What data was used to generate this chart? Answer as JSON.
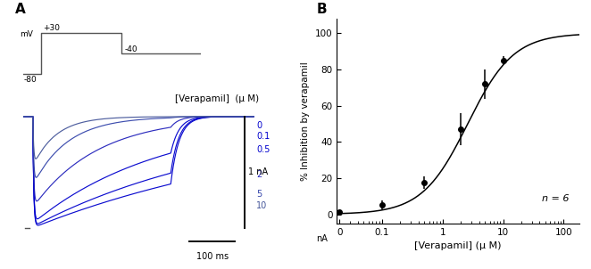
{
  "panel_A_label": "A",
  "panel_B_label": "B",
  "voltage_protocol": {
    "labels": [
      "-80",
      "+30",
      "-40"
    ],
    "label_mv": "mV"
  },
  "concentrations": [
    0,
    0.1,
    0.5,
    2,
    5,
    10
  ],
  "conc_labels": [
    "0",
    "0.1",
    "0.5",
    "2",
    "5",
    "10"
  ],
  "verapamil_label": "[Verapamil]  (μ M)",
  "scale_bar_current": "1 nA",
  "scale_bar_time": "100 ms",
  "trace_colors": [
    "#0000cd",
    "#0000cd",
    "#0000cd",
    "#2222bb",
    "#3344aa",
    "#445599"
  ],
  "dose_response": {
    "x_data": [
      0.02,
      0.1,
      0.5,
      2,
      5,
      10
    ],
    "y_data": [
      1.0,
      5.0,
      17.5,
      47.0,
      72.0,
      85.0
    ],
    "y_err": [
      0.8,
      2.5,
      3.5,
      9.0,
      8.0,
      2.5
    ],
    "ic50": 2.6,
    "hill": 1.15,
    "y_max": 100.0,
    "xlabel": "[Verapamil] (μ M)",
    "ylabel": "% Inhibition by verapamil",
    "n_label": "n = 6",
    "y_ticks": [
      0,
      20,
      40,
      60,
      80,
      100
    ],
    "ylim": [
      -5,
      108
    ]
  },
  "background_color": "#ffffff"
}
